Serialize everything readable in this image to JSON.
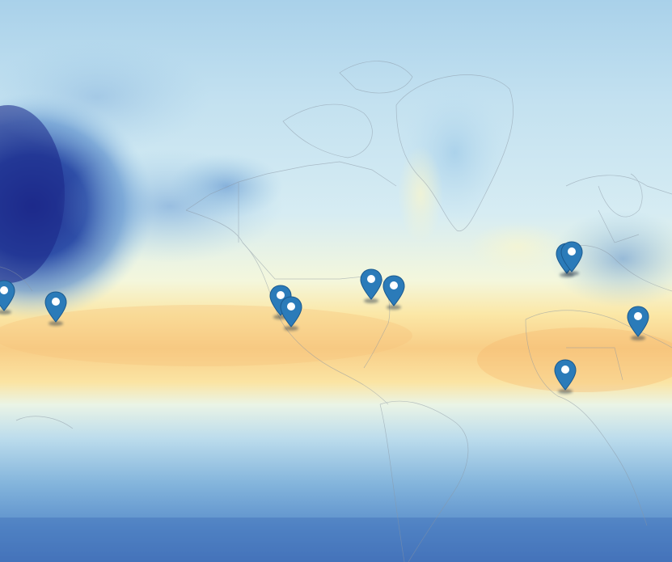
{
  "map": {
    "type": "heatmap",
    "projection": "mercator",
    "colors": {
      "deep_blue": "#1f2f8f",
      "blue": "#3f78bf",
      "light_blue": "#bfe0ef",
      "pale": "#eef6f0",
      "yellow": "#fff2b8",
      "orange": "#f8c47a",
      "marker": "#2b7bb9",
      "marker_shadow": "#1b4f7a",
      "border": "#8a96a3"
    }
  },
  "markers": [
    {
      "name": "marker-hawaii-west",
      "icon": "map-pin-icon"
    },
    {
      "name": "marker-hawaii",
      "icon": "map-pin-icon"
    },
    {
      "name": "marker-san-francisco",
      "icon": "map-pin-icon"
    },
    {
      "name": "marker-los-angeles",
      "icon": "map-pin-icon"
    },
    {
      "name": "marker-chicago",
      "icon": "map-pin-icon"
    },
    {
      "name": "marker-new-york",
      "icon": "map-pin-icon"
    },
    {
      "name": "marker-london",
      "icon": "map-pin-icon"
    },
    {
      "name": "marker-amsterdam",
      "icon": "map-pin-icon"
    },
    {
      "name": "marker-middle-east",
      "icon": "map-pin-icon"
    },
    {
      "name": "marker-west-africa",
      "icon": "map-pin-icon"
    }
  ]
}
